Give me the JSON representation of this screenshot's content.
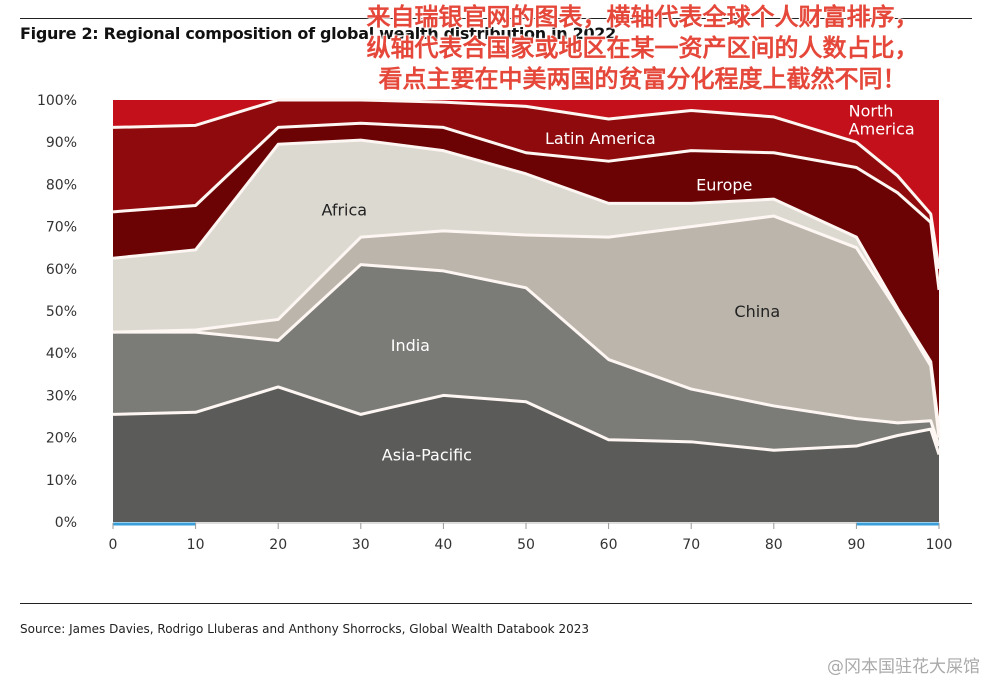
{
  "title": "Figure 2: Regional composition of global wealth distribution in 2022",
  "overlay_text": [
    "来自瑞银官网的图表，横轴代表全球个人财富排序，",
    "纵轴代表合国家或地区在某一资产区间的人数占比，",
    "看点主要在中美两国的贫富分化程度上截然不同！"
  ],
  "source": "Source: James Davies, Rodrigo Lluberas and Anthony Shorrocks, Global Wealth Databook 2023",
  "watermark": "@冈本国驻花大屎馆",
  "chart_data": {
    "type": "area",
    "stacked": true,
    "title": "Figure 2: Regional composition of global wealth distribution in 2022",
    "xlabel": "",
    "ylabel": "",
    "xlim": [
      0,
      100
    ],
    "ylim": [
      0,
      100
    ],
    "x": [
      0,
      10,
      20,
      30,
      40,
      50,
      60,
      70,
      80,
      90,
      95,
      99,
      100
    ],
    "x_ticks": [
      "0",
      "10",
      "20",
      "30",
      "40",
      "50",
      "60",
      "70",
      "80",
      "90",
      "100"
    ],
    "y_ticks": [
      "0%",
      "10%",
      "20%",
      "30%",
      "40%",
      "50%",
      "60%",
      "70%",
      "80%",
      "90%",
      "100%"
    ],
    "highlighted_x_ranges": [
      [
        0,
        10
      ],
      [
        90,
        100
      ]
    ],
    "highlight_color": "#3a9fd8",
    "series_cumulative_top": [
      {
        "name": "Asia-Pacific",
        "color": "#5b5c5a",
        "label_color": "#ffffff",
        "label_at": [
          38,
          16
        ],
        "values": [
          25.5,
          26,
          32,
          25.5,
          30,
          28.5,
          19.5,
          19,
          17,
          18,
          20.5,
          22,
          16
        ]
      },
      {
        "name": "India",
        "color": "#7b7b78",
        "label_color": "#ffffff",
        "label_at": [
          36,
          42
        ],
        "values": [
          45,
          45,
          43,
          61,
          59.5,
          55.5,
          38.5,
          31.5,
          27.5,
          24.5,
          23.5,
          24,
          18
        ]
      },
      {
        "name": "China",
        "color": "#bbb5ab",
        "label_color": "#222222",
        "label_at": [
          78,
          50
        ],
        "values": [
          45,
          45.5,
          48,
          67.5,
          69,
          68,
          67.5,
          70,
          72.5,
          65,
          50,
          37,
          20
        ]
      },
      {
        "name": "Africa",
        "color": "#dcd9d1",
        "label_color": "#222222",
        "label_at": [
          28,
          74
        ],
        "values": [
          62.5,
          64.5,
          89.5,
          90.5,
          88,
          82.5,
          75.5,
          75.5,
          76.5,
          67.5,
          50.5,
          38,
          22
        ]
      },
      {
        "name": "Europe",
        "color": "#6b0203",
        "label_color": "#ffffff",
        "label_at": [
          74,
          80
        ],
        "values": [
          73.5,
          75,
          93.5,
          94.5,
          93.5,
          87.5,
          85.5,
          88,
          87.5,
          84,
          78,
          71,
          55
        ]
      },
      {
        "name": "Latin America",
        "color": "#8e0a0c",
        "label_color": "#ffffff",
        "label_at": [
          59,
          91
        ],
        "values": [
          93.5,
          94,
          100,
          100,
          99.5,
          98.5,
          95.5,
          97.5,
          96,
          90,
          82,
          73,
          60
        ]
      },
      {
        "name": "North America",
        "color": "#c4101a",
        "label_color": "#ffffff",
        "label_at": [
          91,
          97
        ],
        "values": [
          100,
          100,
          100,
          100,
          100,
          100,
          100,
          100,
          100,
          100,
          100,
          100,
          100
        ]
      }
    ]
  }
}
